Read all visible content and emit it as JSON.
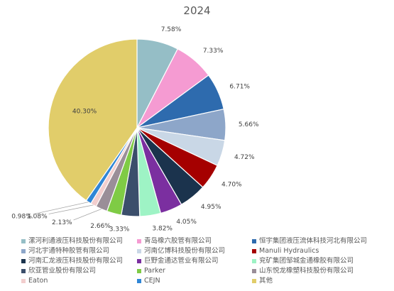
{
  "chart_data": {
    "type": "pie",
    "title": "2024",
    "legend_position": "bottom",
    "categories": [
      "漯河利通液压科技股份有限公司",
      "青岛橡六胶管有限公司",
      "恒宇集团液压流体科技河北有限公司",
      "河北宇通特种胶管有限公司",
      "河南亿博科技股份有限公司",
      "Manuli Hydraulics",
      "河南汇龙液压科技股份有限公司",
      "巨野金通达管业有限公司",
      "兖矿集团邹城金通橡胶有限公司",
      "欣亚管业股份有限公司",
      "Parker",
      "山东悦龙橡塑科技股份有限公司",
      "Eaton",
      "CEJN",
      "其他"
    ],
    "values": [
      7.58,
      7.33,
      6.71,
      5.66,
      4.72,
      4.7,
      4.95,
      4.05,
      3.82,
      3.33,
      2.66,
      2.13,
      1.08,
      0.98,
      40.3
    ],
    "labels": [
      "7.58%",
      "7.33%",
      "6.71%",
      "5.66%",
      "4.72%",
      "4.70%",
      "4.95%",
      "4.05%",
      "3.82%",
      "3.33%",
      "2.66%",
      "2.13%",
      "1.08%",
      "0.98%",
      "40.30%"
    ],
    "colors": [
      "#95BEC6",
      "#F59BD2",
      "#2E6BAE",
      "#8DA6C9",
      "#C9D7E6",
      "#A50000",
      "#1B334D",
      "#7B2FA0",
      "#9EF3C5",
      "#3B4E6B",
      "#7FCB45",
      "#9A8E98",
      "#F2CECE",
      "#2F86D6",
      "#E1CD6A"
    ]
  }
}
